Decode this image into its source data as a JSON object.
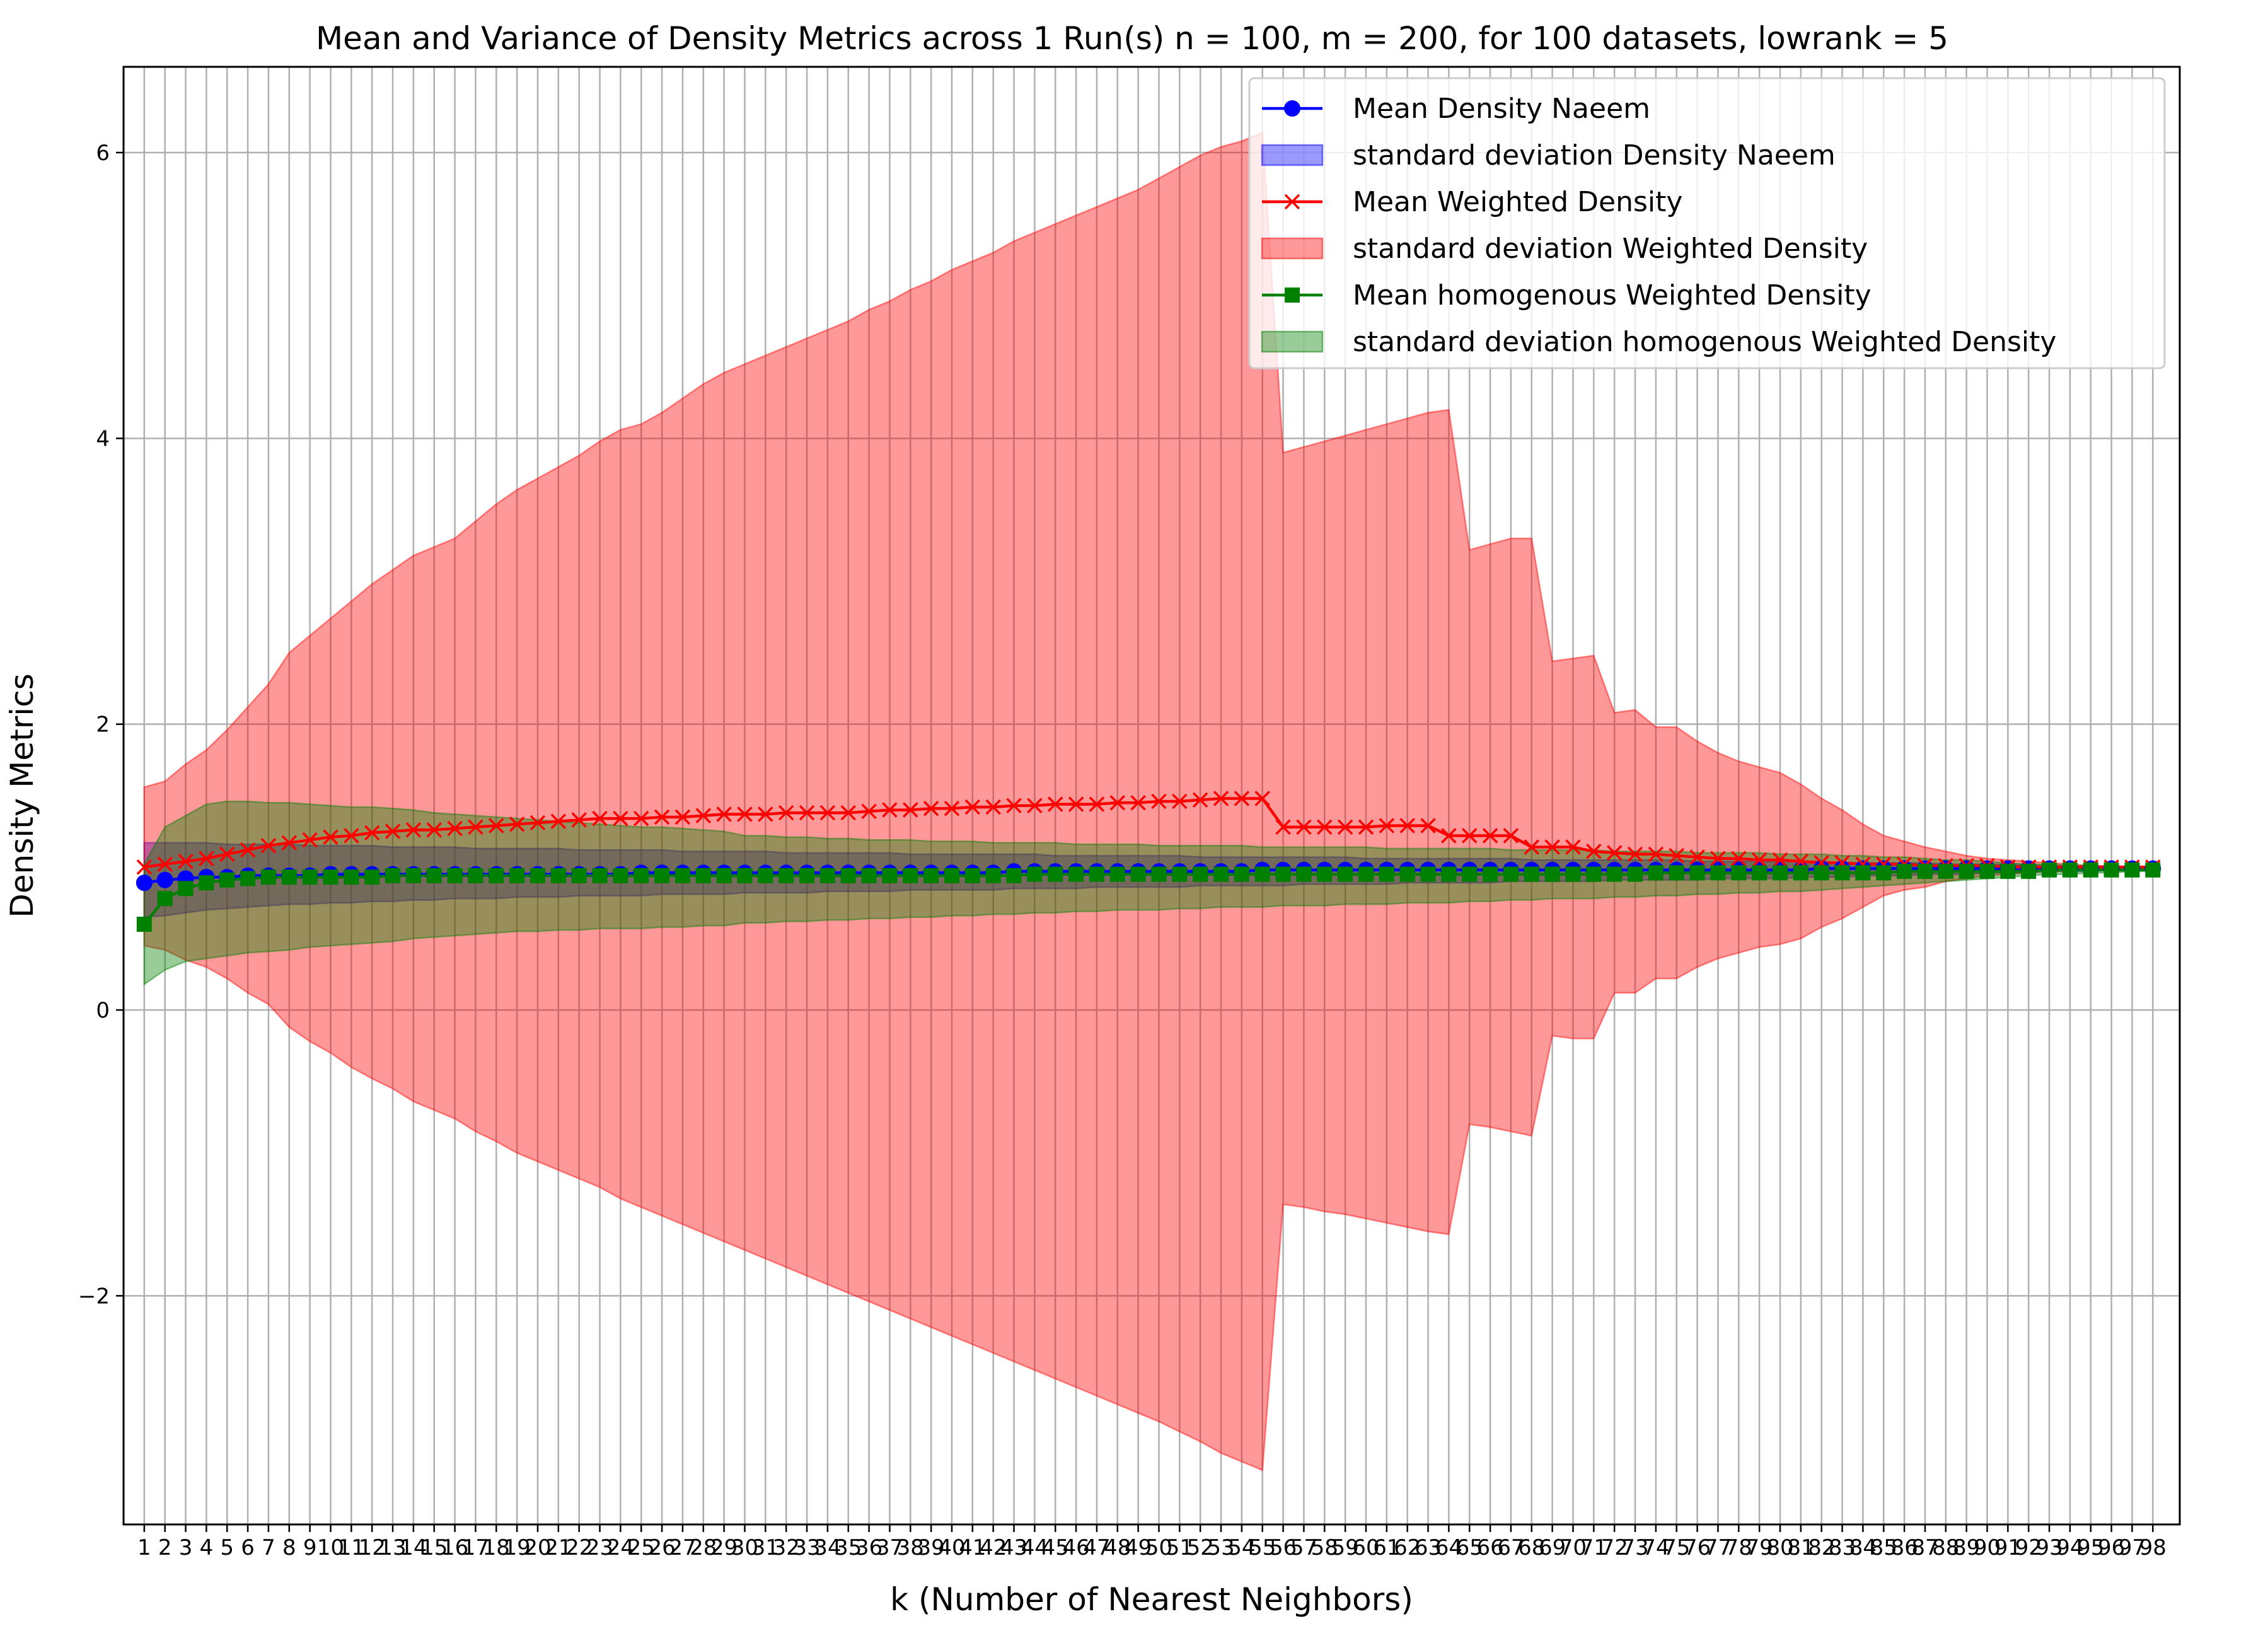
{
  "chart_data": {
    "type": "line",
    "title": "Mean and Variance of Density Metrics across 1 Run(s) n  = 100, m  = 200, for 100 datasets, lowrank = 5",
    "xlabel": "k (Number of Nearest Neighbors)",
    "ylabel": "Density Metrics",
    "xlim": [
      0.0,
      99.3
    ],
    "ylim": [
      -3.6,
      6.6
    ],
    "x": [
      1,
      2,
      3,
      4,
      5,
      6,
      7,
      8,
      9,
      10,
      11,
      12,
      13,
      14,
      15,
      16,
      17,
      18,
      19,
      20,
      21,
      22,
      23,
      24,
      25,
      26,
      27,
      28,
      29,
      30,
      31,
      32,
      33,
      34,
      35,
      36,
      37,
      38,
      39,
      40,
      41,
      42,
      43,
      44,
      45,
      46,
      47,
      48,
      49,
      50,
      51,
      52,
      53,
      54,
      55,
      56,
      57,
      58,
      59,
      60,
      61,
      62,
      63,
      64,
      65,
      66,
      67,
      68,
      69,
      70,
      71,
      72,
      73,
      74,
      75,
      76,
      77,
      78,
      79,
      80,
      81,
      82,
      83,
      84,
      85,
      86,
      87,
      88,
      89,
      90,
      91,
      92,
      93,
      94,
      95,
      96,
      97,
      98
    ],
    "xticklabels": [
      "1",
      "2",
      "3",
      "4",
      "5",
      "6",
      "7",
      "8",
      "9",
      "10",
      "11",
      "12",
      "13",
      "14",
      "15",
      "16",
      "17",
      "18",
      "19",
      "20",
      "21",
      "22",
      "23",
      "24",
      "25",
      "26",
      "27",
      "28",
      "29",
      "30",
      "31",
      "32",
      "33",
      "34",
      "35",
      "36",
      "37",
      "38",
      "39",
      "40",
      "41",
      "42",
      "43",
      "44",
      "45",
      "46",
      "47",
      "48",
      "49",
      "50",
      "51",
      "52",
      "53",
      "54",
      "55",
      "56",
      "57",
      "58",
      "59",
      "60",
      "61",
      "62",
      "63",
      "64",
      "65",
      "66",
      "67",
      "68",
      "69",
      "70",
      "71",
      "72",
      "73",
      "74",
      "75",
      "76",
      "77",
      "78",
      "79",
      "80",
      "81",
      "82",
      "83",
      "84",
      "85",
      "86",
      "87",
      "88",
      "89",
      "90",
      "91",
      "92",
      "93",
      "94",
      "95",
      "96",
      "97",
      "98"
    ],
    "yticks": [
      -2,
      0,
      2,
      4,
      6
    ],
    "yticklabels": [
      "−2",
      "0",
      "2",
      "4",
      "6"
    ],
    "grid": true,
    "legend_position": "top-right",
    "series": [
      {
        "name": "Mean Density Naeem",
        "kind": "line",
        "marker": "circle",
        "color": "#0000ff",
        "values": [
          0.89,
          0.91,
          0.92,
          0.93,
          0.93,
          0.94,
          0.94,
          0.94,
          0.94,
          0.95,
          0.95,
          0.95,
          0.95,
          0.95,
          0.95,
          0.95,
          0.95,
          0.95,
          0.95,
          0.95,
          0.95,
          0.95,
          0.95,
          0.95,
          0.96,
          0.96,
          0.96,
          0.96,
          0.96,
          0.96,
          0.96,
          0.96,
          0.96,
          0.96,
          0.96,
          0.96,
          0.96,
          0.96,
          0.96,
          0.96,
          0.96,
          0.96,
          0.97,
          0.97,
          0.97,
          0.97,
          0.97,
          0.97,
          0.97,
          0.97,
          0.97,
          0.97,
          0.97,
          0.97,
          0.98,
          0.98,
          0.98,
          0.98,
          0.98,
          0.98,
          0.98,
          0.98,
          0.98,
          0.98,
          0.98,
          0.98,
          0.98,
          0.98,
          0.98,
          0.98,
          0.98,
          0.98,
          0.98,
          0.98,
          0.98,
          0.98,
          0.98,
          0.98,
          0.98,
          0.98,
          0.98,
          0.99,
          0.99,
          0.99,
          0.99,
          0.99,
          0.99,
          0.99,
          0.99,
          0.99,
          0.99,
          0.99,
          0.99,
          0.99,
          0.99,
          0.99,
          0.99,
          0.99
        ]
      },
      {
        "name": "standard deviation Density Naeem",
        "kind": "band",
        "color": "#0000ff",
        "opacity": 0.4,
        "lower": [
          0.65,
          0.66,
          0.68,
          0.7,
          0.71,
          0.72,
          0.73,
          0.74,
          0.74,
          0.75,
          0.75,
          0.76,
          0.76,
          0.77,
          0.77,
          0.78,
          0.78,
          0.78,
          0.79,
          0.79,
          0.79,
          0.8,
          0.8,
          0.8,
          0.8,
          0.81,
          0.81,
          0.81,
          0.81,
          0.82,
          0.82,
          0.82,
          0.82,
          0.83,
          0.83,
          0.83,
          0.83,
          0.84,
          0.84,
          0.84,
          0.84,
          0.84,
          0.85,
          0.85,
          0.85,
          0.85,
          0.86,
          0.86,
          0.86,
          0.86,
          0.86,
          0.87,
          0.87,
          0.87,
          0.87,
          0.87,
          0.88,
          0.88,
          0.88,
          0.88,
          0.88,
          0.89,
          0.89,
          0.89,
          0.89,
          0.89,
          0.9,
          0.9,
          0.9,
          0.9,
          0.9,
          0.91,
          0.91,
          0.91,
          0.91,
          0.91,
          0.92,
          0.92,
          0.92,
          0.92,
          0.93,
          0.93,
          0.93,
          0.94,
          0.94,
          0.94,
          0.95,
          0.95,
          0.95,
          0.96,
          0.96,
          0.96,
          0.97,
          0.97,
          0.97,
          0.98,
          0.98,
          0.98
        ],
        "upper": [
          1.17,
          1.17,
          1.17,
          1.17,
          1.16,
          1.16,
          1.16,
          1.16,
          1.15,
          1.15,
          1.15,
          1.15,
          1.14,
          1.14,
          1.14,
          1.14,
          1.13,
          1.13,
          1.13,
          1.13,
          1.13,
          1.12,
          1.12,
          1.12,
          1.12,
          1.12,
          1.11,
          1.11,
          1.11,
          1.11,
          1.11,
          1.1,
          1.1,
          1.1,
          1.1,
          1.1,
          1.1,
          1.09,
          1.09,
          1.09,
          1.09,
          1.09,
          1.09,
          1.09,
          1.08,
          1.08,
          1.08,
          1.08,
          1.08,
          1.08,
          1.08,
          1.07,
          1.07,
          1.07,
          1.07,
          1.07,
          1.07,
          1.07,
          1.07,
          1.06,
          1.06,
          1.06,
          1.06,
          1.06,
          1.06,
          1.06,
          1.06,
          1.05,
          1.05,
          1.05,
          1.05,
          1.05,
          1.05,
          1.05,
          1.05,
          1.04,
          1.04,
          1.04,
          1.04,
          1.04,
          1.04,
          1.04,
          1.03,
          1.03,
          1.03,
          1.03,
          1.03,
          1.02,
          1.02,
          1.02,
          1.02,
          1.01,
          1.01,
          1.01,
          1.01,
          1.0,
          1.0,
          1.0
        ]
      },
      {
        "name": "Mean Weighted Density",
        "kind": "line",
        "marker": "x",
        "color": "#ff0000",
        "values": [
          1.0,
          1.02,
          1.04,
          1.06,
          1.09,
          1.12,
          1.15,
          1.17,
          1.19,
          1.21,
          1.22,
          1.24,
          1.25,
          1.26,
          1.26,
          1.27,
          1.28,
          1.29,
          1.3,
          1.31,
          1.32,
          1.33,
          1.34,
          1.34,
          1.34,
          1.35,
          1.35,
          1.36,
          1.37,
          1.37,
          1.37,
          1.38,
          1.38,
          1.38,
          1.38,
          1.39,
          1.4,
          1.4,
          1.41,
          1.41,
          1.42,
          1.42,
          1.43,
          1.43,
          1.44,
          1.44,
          1.44,
          1.45,
          1.45,
          1.46,
          1.46,
          1.47,
          1.48,
          1.48,
          1.48,
          1.28,
          1.28,
          1.28,
          1.28,
          1.28,
          1.29,
          1.29,
          1.29,
          1.22,
          1.22,
          1.22,
          1.22,
          1.14,
          1.14,
          1.14,
          1.11,
          1.1,
          1.09,
          1.09,
          1.08,
          1.07,
          1.06,
          1.06,
          1.05,
          1.05,
          1.04,
          1.03,
          1.03,
          1.02,
          1.02,
          1.02,
          1.01,
          1.01,
          1.01,
          1.01,
          1.0,
          1.0,
          1.0,
          1.0,
          1.0,
          1.0,
          1.0,
          1.0
        ]
      },
      {
        "name": "standard deviation Weighted Density",
        "kind": "band",
        "color": "#ff0000",
        "opacity": 0.4,
        "lower": [
          0.45,
          0.42,
          0.35,
          0.3,
          0.22,
          0.12,
          0.04,
          -0.12,
          -0.22,
          -0.3,
          -0.4,
          -0.48,
          -0.55,
          -0.64,
          -0.7,
          -0.76,
          -0.85,
          -0.92,
          -1.0,
          -1.06,
          -1.12,
          -1.18,
          -1.24,
          -1.32,
          -1.38,
          -1.44,
          -1.5,
          -1.56,
          -1.62,
          -1.68,
          -1.74,
          -1.8,
          -1.86,
          -1.92,
          -1.98,
          -2.04,
          -2.1,
          -2.16,
          -2.22,
          -2.28,
          -2.34,
          -2.4,
          -2.46,
          -2.52,
          -2.58,
          -2.64,
          -2.7,
          -2.76,
          -2.82,
          -2.88,
          -2.95,
          -3.02,
          -3.1,
          -3.16,
          -3.22,
          -1.36,
          -1.38,
          -1.41,
          -1.43,
          -1.46,
          -1.49,
          -1.52,
          -1.55,
          -1.57,
          -0.8,
          -0.82,
          -0.85,
          -0.88,
          -0.18,
          -0.2,
          -0.2,
          0.12,
          0.12,
          0.22,
          0.22,
          0.3,
          0.36,
          0.4,
          0.44,
          0.46,
          0.5,
          0.58,
          0.64,
          0.72,
          0.8,
          0.84,
          0.86,
          0.9,
          0.92,
          0.94,
          0.95,
          0.96,
          0.97,
          0.97,
          0.98,
          0.98,
          0.99,
          0.99
        ],
        "upper": [
          1.56,
          1.6,
          1.72,
          1.82,
          1.96,
          2.12,
          2.28,
          2.5,
          2.62,
          2.74,
          2.86,
          2.98,
          3.08,
          3.18,
          3.24,
          3.3,
          3.42,
          3.54,
          3.64,
          3.72,
          3.8,
          3.88,
          3.98,
          4.06,
          4.1,
          4.18,
          4.28,
          4.38,
          4.46,
          4.52,
          4.58,
          4.64,
          4.7,
          4.76,
          4.82,
          4.9,
          4.96,
          5.04,
          5.1,
          5.18,
          5.24,
          5.3,
          5.38,
          5.44,
          5.5,
          5.56,
          5.62,
          5.68,
          5.74,
          5.82,
          5.9,
          5.98,
          6.04,
          6.08,
          6.14,
          3.9,
          3.94,
          3.98,
          4.02,
          4.06,
          4.1,
          4.14,
          4.18,
          4.2,
          3.22,
          3.26,
          3.3,
          3.3,
          2.44,
          2.46,
          2.48,
          2.08,
          2.1,
          1.98,
          1.98,
          1.88,
          1.8,
          1.74,
          1.7,
          1.66,
          1.58,
          1.48,
          1.4,
          1.3,
          1.22,
          1.18,
          1.14,
          1.11,
          1.08,
          1.06,
          1.05,
          1.04,
          1.03,
          1.02,
          1.01,
          1.01,
          1.0,
          1.0
        ]
      },
      {
        "name": "Mean homogenous Weighted Density",
        "kind": "line",
        "marker": "square",
        "color": "#008000",
        "values": [
          0.6,
          0.78,
          0.85,
          0.89,
          0.91,
          0.92,
          0.93,
          0.93,
          0.93,
          0.93,
          0.93,
          0.93,
          0.94,
          0.94,
          0.94,
          0.94,
          0.94,
          0.94,
          0.94,
          0.94,
          0.94,
          0.94,
          0.94,
          0.94,
          0.94,
          0.94,
          0.94,
          0.94,
          0.94,
          0.94,
          0.94,
          0.94,
          0.94,
          0.94,
          0.94,
          0.94,
          0.94,
          0.94,
          0.94,
          0.94,
          0.94,
          0.94,
          0.94,
          0.95,
          0.95,
          0.95,
          0.95,
          0.95,
          0.95,
          0.95,
          0.95,
          0.95,
          0.95,
          0.95,
          0.95,
          0.95,
          0.95,
          0.95,
          0.95,
          0.95,
          0.95,
          0.95,
          0.95,
          0.95,
          0.95,
          0.95,
          0.95,
          0.95,
          0.95,
          0.95,
          0.95,
          0.95,
          0.95,
          0.96,
          0.96,
          0.96,
          0.96,
          0.96,
          0.96,
          0.96,
          0.96,
          0.96,
          0.96,
          0.96,
          0.96,
          0.97,
          0.97,
          0.97,
          0.97,
          0.97,
          0.97,
          0.97,
          0.98,
          0.98,
          0.98,
          0.98,
          0.98,
          0.98
        ]
      },
      {
        "name": "standard deviation homogenous Weighted Density",
        "kind": "band",
        "color": "#008000",
        "opacity": 0.4,
        "lower": [
          0.18,
          0.28,
          0.34,
          0.36,
          0.38,
          0.4,
          0.41,
          0.42,
          0.44,
          0.45,
          0.46,
          0.47,
          0.48,
          0.5,
          0.51,
          0.52,
          0.53,
          0.54,
          0.55,
          0.55,
          0.56,
          0.56,
          0.57,
          0.57,
          0.57,
          0.58,
          0.58,
          0.59,
          0.59,
          0.61,
          0.61,
          0.62,
          0.62,
          0.63,
          0.63,
          0.64,
          0.64,
          0.65,
          0.65,
          0.66,
          0.66,
          0.67,
          0.67,
          0.68,
          0.68,
          0.69,
          0.69,
          0.7,
          0.7,
          0.7,
          0.71,
          0.71,
          0.72,
          0.72,
          0.72,
          0.73,
          0.73,
          0.73,
          0.74,
          0.74,
          0.74,
          0.75,
          0.75,
          0.75,
          0.76,
          0.76,
          0.77,
          0.77,
          0.78,
          0.78,
          0.78,
          0.79,
          0.79,
          0.8,
          0.8,
          0.81,
          0.81,
          0.82,
          0.82,
          0.83,
          0.83,
          0.84,
          0.85,
          0.86,
          0.87,
          0.88,
          0.89,
          0.9,
          0.91,
          0.92,
          0.93,
          0.94,
          0.95,
          0.95,
          0.96,
          0.96,
          0.97,
          0.97
        ],
        "upper": [
          1.02,
          1.28,
          1.36,
          1.44,
          1.46,
          1.46,
          1.45,
          1.45,
          1.44,
          1.43,
          1.42,
          1.42,
          1.41,
          1.4,
          1.38,
          1.37,
          1.36,
          1.35,
          1.34,
          1.33,
          1.32,
          1.31,
          1.3,
          1.29,
          1.28,
          1.28,
          1.27,
          1.26,
          1.25,
          1.22,
          1.22,
          1.21,
          1.21,
          1.2,
          1.2,
          1.19,
          1.19,
          1.19,
          1.18,
          1.18,
          1.18,
          1.17,
          1.17,
          1.17,
          1.17,
          1.16,
          1.16,
          1.16,
          1.16,
          1.15,
          1.15,
          1.15,
          1.15,
          1.15,
          1.14,
          1.14,
          1.14,
          1.14,
          1.14,
          1.14,
          1.13,
          1.13,
          1.13,
          1.13,
          1.13,
          1.13,
          1.12,
          1.12,
          1.12,
          1.12,
          1.12,
          1.11,
          1.11,
          1.11,
          1.11,
          1.1,
          1.1,
          1.1,
          1.1,
          1.09,
          1.09,
          1.09,
          1.08,
          1.08,
          1.07,
          1.07,
          1.06,
          1.05,
          1.05,
          1.04,
          1.03,
          1.02,
          1.02,
          1.01,
          1.01,
          1.0,
          1.0,
          1.0
        ]
      }
    ]
  }
}
